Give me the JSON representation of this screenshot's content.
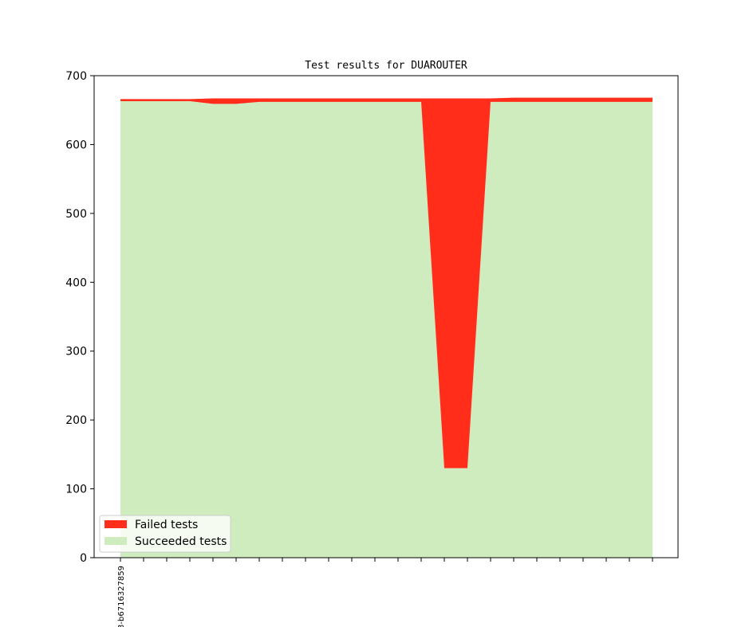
{
  "chart_data": {
    "type": "area",
    "title": "Test results for DUAROUTER",
    "xlabel": "",
    "ylabel": "",
    "ylim": [
      0,
      700
    ],
    "yticks": [
      0,
      100,
      200,
      300,
      400,
      500,
      600,
      700
    ],
    "x_tick_count": 24,
    "x_tick_labels": [
      "3-b6716327859"
    ],
    "stacked": true,
    "series": [
      {
        "name": "Succeeded tests",
        "color": "#cfecbf",
        "values": [
          663,
          663,
          663,
          663,
          659,
          659,
          662,
          662,
          662,
          662,
          662,
          662,
          662,
          662,
          130,
          130,
          662,
          662,
          662,
          662,
          662,
          662,
          662,
          662
        ]
      },
      {
        "name": "Failed tests",
        "color": "#ff2d1a",
        "values": [
          3,
          3,
          3,
          3,
          8,
          8,
          5,
          5,
          5,
          5,
          5,
          5,
          5,
          5,
          537,
          537,
          5,
          6,
          6,
          6,
          6,
          6,
          6,
          6
        ]
      }
    ],
    "legend": {
      "position": "lower-left",
      "entries": [
        "Failed tests",
        "Succeeded tests"
      ]
    }
  }
}
